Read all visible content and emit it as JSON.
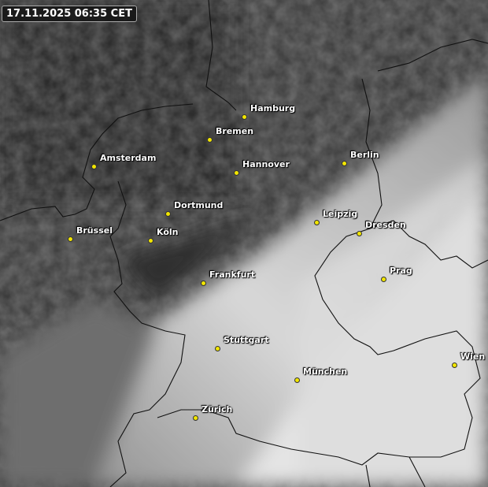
{
  "timestamp": "17.11.2025 06:35 CET",
  "colors": {
    "city_dot": "#f2e600",
    "label": "#ffffff",
    "border": "#111111"
  },
  "cities": [
    {
      "name": "Hamburg"
    },
    {
      "name": "Bremen"
    },
    {
      "name": "Amsterdam"
    },
    {
      "name": "Hannover"
    },
    {
      "name": "Berlin"
    },
    {
      "name": "Dortmund"
    },
    {
      "name": "Leipzig"
    },
    {
      "name": "Dresden"
    },
    {
      "name": "Brüssel"
    },
    {
      "name": "Köln"
    },
    {
      "name": "Frankfurt"
    },
    {
      "name": "Prag"
    },
    {
      "name": "Stuttgart"
    },
    {
      "name": "München"
    },
    {
      "name": "Wien"
    },
    {
      "name": "Zürich"
    }
  ]
}
